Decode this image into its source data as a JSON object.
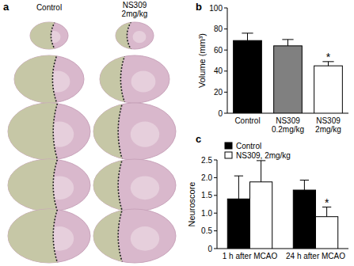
{
  "panel_labels": [
    "a",
    "b",
    "c"
  ],
  "images": {
    "columns": [
      "Control",
      "NS309\n2mg/kg"
    ]
  },
  "chart_data": [
    {
      "type": "bar",
      "y_label": "Volume (mm³)",
      "categories": [
        "Control",
        "NS309\n0.2mg/kg",
        "NS309\n2mg/kg"
      ],
      "values": [
        69,
        64,
        45
      ],
      "errors": [
        7,
        6,
        4
      ],
      "colors": [
        "#000000",
        "#808080",
        "#ffffff"
      ],
      "significance": [
        null,
        null,
        "*"
      ],
      "ylim": [
        0,
        100
      ],
      "yticks": [
        0,
        20,
        40,
        60,
        80,
        100
      ]
    },
    {
      "type": "bar",
      "y_label": "Neuroscore",
      "categories": [
        "1 h after MCAO",
        "24 h after MCAO"
      ],
      "series": [
        {
          "name": "Control",
          "color": "#000000",
          "values": [
            1.4,
            1.65
          ],
          "errors": [
            0.65,
            0.28
          ]
        },
        {
          "name": "NS309, 2mg/kg",
          "color": "#ffffff",
          "values": [
            1.88,
            0.9
          ],
          "errors": [
            0.6,
            0.27
          ],
          "significance": [
            null,
            "*"
          ]
        }
      ],
      "ylim": [
        0,
        2.5
      ],
      "yticks": [
        0,
        0.5,
        {
          "value": 1,
          "label": "1.0"
        },
        1.5,
        {
          "value": 2,
          "label": "2.0"
        },
        2.5
      ],
      "legend": "top-left"
    }
  ]
}
